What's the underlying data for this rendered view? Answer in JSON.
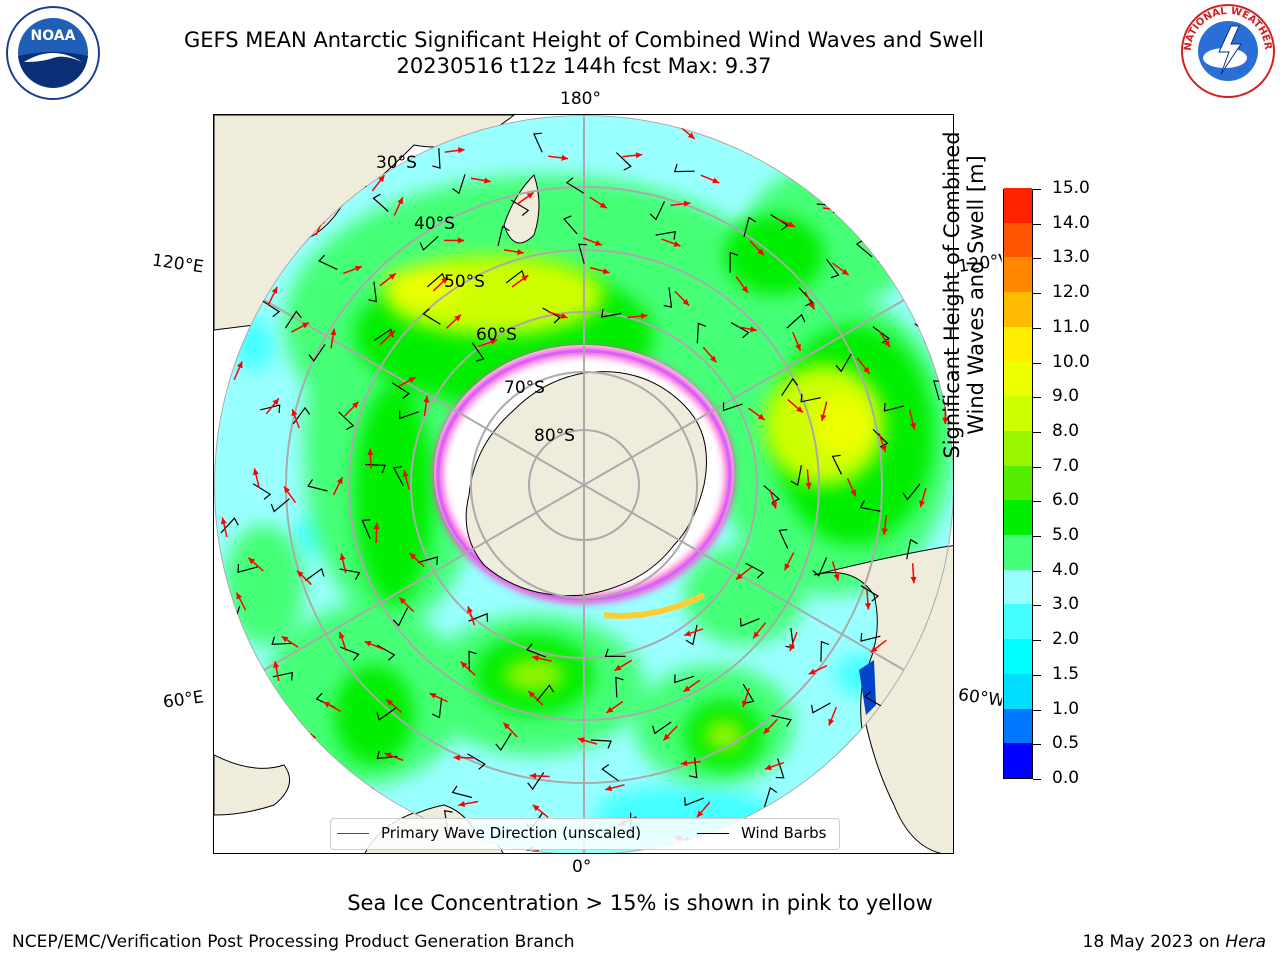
{
  "header": {
    "title_line1": "GEFS MEAN Antarctic Significant Height of Combined Wind Waves and Swell",
    "title_line2": "20230516 t12z 144h fcst   Max: 9.37"
  },
  "logos": {
    "left": {
      "icon": "noaa-logo",
      "text": "NOAA"
    },
    "right": {
      "icon": "nws-logo",
      "text": "NATIONAL WEATHER SERVICE"
    }
  },
  "map": {
    "lon_labels": {
      "top": "180°",
      "bottom": "0°",
      "left_top": "120°E",
      "left_bottom": "60°E",
      "right_top": "120°W",
      "right_bottom": "60°W"
    },
    "lat_labels": [
      "30°S",
      "40°S",
      "50°S",
      "60°S",
      "70°S",
      "80°S"
    ],
    "colors": {
      "land": "#efecdc",
      "ice_edge": "#ff33cc"
    }
  },
  "legend": {
    "wave_label": "Primary Wave Direction (unscaled)",
    "wave_color": "#ff0000",
    "barb_label": "Wind Barbs",
    "barb_color": "#000000"
  },
  "colorbar": {
    "label_line1": "Significant Height of Combined",
    "label_line2": "Wind Waves and Swell [m]",
    "ticks": [
      "0.0",
      "0.5",
      "1.0",
      "1.5",
      "2.0",
      "3.0",
      "4.0",
      "5.0",
      "6.0",
      "7.0",
      "8.0",
      "9.0",
      "10.0",
      "11.0",
      "12.0",
      "13.0",
      "14.0",
      "15.0"
    ],
    "colors": [
      "#0000ff",
      "#0077ff",
      "#00ddff",
      "#00ffff",
      "#44ffff",
      "#99ffff",
      "#44ff77",
      "#00ee00",
      "#55ee00",
      "#99f500",
      "#ccff00",
      "#eeff00",
      "#ffee00",
      "#ffbb00",
      "#ff8800",
      "#ff5500",
      "#ff2200"
    ]
  },
  "note": "Sea Ice Concentration > 15% is shown in pink to yellow",
  "footer": {
    "left": "NCEP/EMC/Verification Post Processing Product Generation Branch",
    "right_prefix": "18 May 2023 on ",
    "right_italic": "Hera"
  }
}
